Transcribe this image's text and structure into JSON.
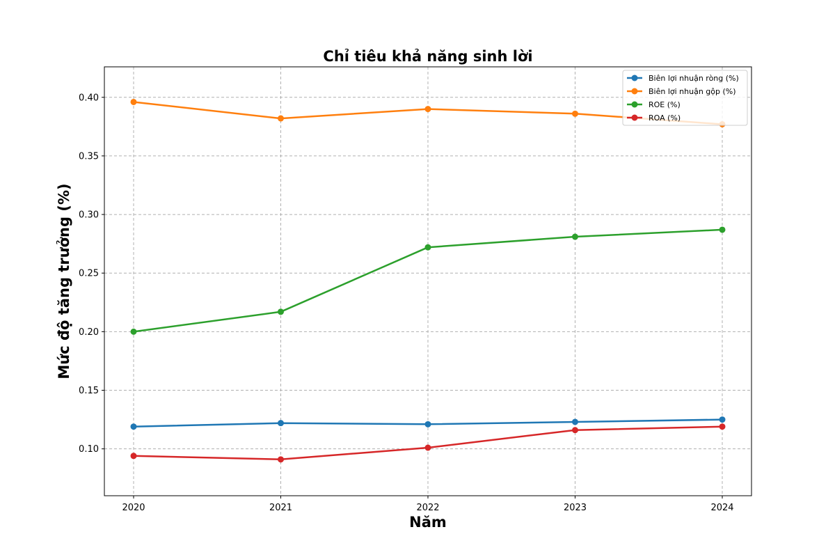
{
  "chart_data": {
    "type": "line",
    "title": "Chỉ tiêu khả năng sinh lời",
    "xlabel": "Năm",
    "ylabel": "Mức độ tăng trưởng (%)",
    "categories": [
      "2020",
      "2021",
      "2022",
      "2023",
      "2024"
    ],
    "ylim": [
      0.06,
      0.426
    ],
    "yticks": [
      "0.10",
      "0.15",
      "0.20",
      "0.25",
      "0.30",
      "0.35",
      "0.40"
    ],
    "grid": true,
    "legend_position": "top-right",
    "series": [
      {
        "name": "Biên lợi nhuận ròng (%)",
        "color": "#1f77b4",
        "values": [
          0.119,
          0.122,
          0.121,
          0.123,
          0.125
        ]
      },
      {
        "name": "Biên lợi nhuận gộp (%)",
        "color": "#ff7f0e",
        "values": [
          0.396,
          0.382,
          0.39,
          0.386,
          0.377
        ]
      },
      {
        "name": "ROE (%)",
        "color": "#2ca02c",
        "values": [
          0.2,
          0.217,
          0.272,
          0.281,
          0.287
        ]
      },
      {
        "name": "ROA (%)",
        "color": "#d62728",
        "values": [
          0.094,
          0.091,
          0.101,
          0.116,
          0.119
        ]
      }
    ]
  }
}
